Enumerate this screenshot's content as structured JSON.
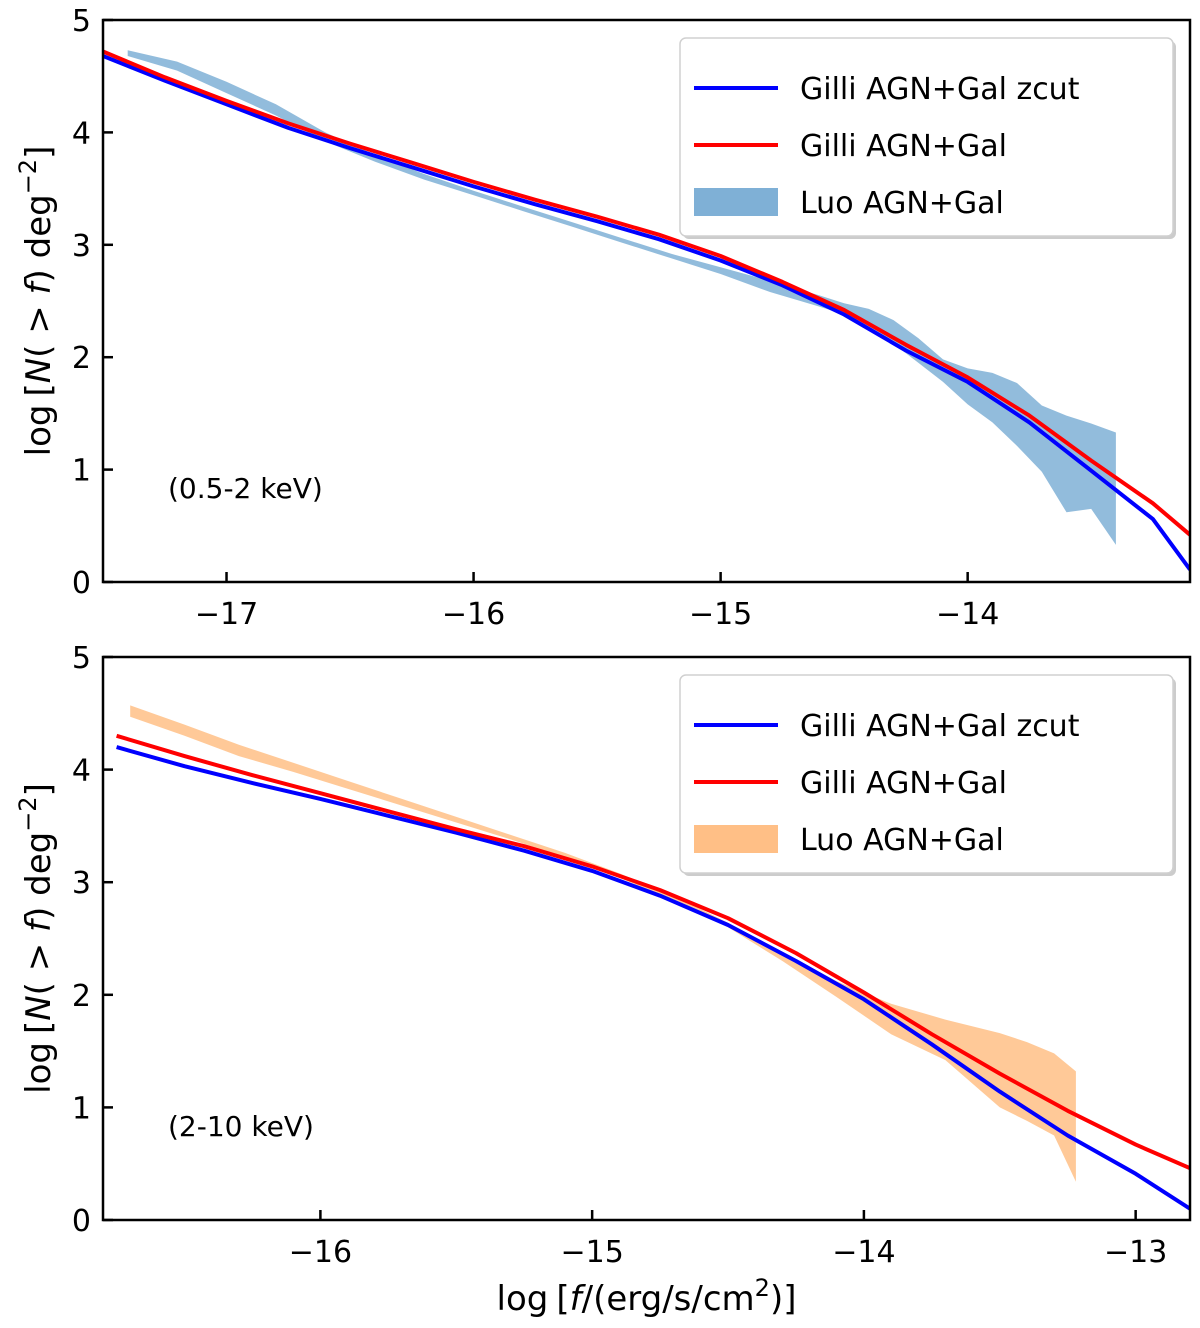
{
  "chart_data": [
    {
      "type": "line",
      "annotation": "(0.5-2 keV)",
      "xlabel": "",
      "ylabel_parts": [
        "log",
        "[",
        "N",
        "( > ",
        "f",
        ") deg",
        "−2",
        "]"
      ],
      "xlim": [
        -17.5,
        -13.1
      ],
      "ylim": [
        0,
        5
      ],
      "xticks": [
        -17,
        -16,
        -15,
        -14
      ],
      "xtick_labels": [
        "−17",
        "−16",
        "−15",
        "−14"
      ],
      "yticks": [
        0,
        1,
        2,
        3,
        4,
        5
      ],
      "ytick_labels": [
        "0",
        "1",
        "2",
        "3",
        "4",
        "5"
      ],
      "legend_position": "top-right",
      "series": [
        {
          "name": "Gilli AGN+Gal zcut",
          "kind": "line",
          "color": "#0000ff",
          "x": [
            -17.5,
            -17.25,
            -17.0,
            -16.75,
            -16.5,
            -16.25,
            -16.0,
            -15.75,
            -15.5,
            -15.25,
            -15.0,
            -14.75,
            -14.5,
            -14.25,
            -14.0,
            -13.75,
            -13.5,
            -13.25,
            -13.1
          ],
          "y": [
            4.68,
            4.46,
            4.25,
            4.04,
            3.86,
            3.69,
            3.52,
            3.36,
            3.21,
            3.05,
            2.86,
            2.64,
            2.38,
            2.06,
            1.78,
            1.42,
            0.99,
            0.56,
            0.11
          ]
        },
        {
          "name": "Gilli AGN+Gal",
          "kind": "line",
          "color": "#ff0000",
          "x": [
            -17.5,
            -17.25,
            -17.0,
            -16.75,
            -16.5,
            -16.25,
            -16.0,
            -15.75,
            -15.5,
            -15.25,
            -15.0,
            -14.75,
            -14.5,
            -14.25,
            -14.0,
            -13.75,
            -13.5,
            -13.25,
            -13.1
          ],
          "y": [
            4.72,
            4.49,
            4.28,
            4.08,
            3.9,
            3.73,
            3.56,
            3.4,
            3.25,
            3.09,
            2.9,
            2.67,
            2.42,
            2.11,
            1.82,
            1.48,
            1.08,
            0.7,
            0.42
          ]
        },
        {
          "name": "Luo AGN+Gal",
          "kind": "band",
          "color": "#7fb0d6",
          "x": [
            -17.4,
            -17.2,
            -17.0,
            -16.8,
            -16.6,
            -16.4,
            -16.2,
            -16.0,
            -15.8,
            -15.6,
            -15.4,
            -15.2,
            -15.0,
            -14.8,
            -14.6,
            -14.5,
            -14.4,
            -14.3,
            -14.2,
            -14.1,
            -14.0,
            -13.9,
            -13.8,
            -13.7,
            -13.6,
            -13.5,
            -13.4
          ],
          "y_low": [
            4.68,
            4.55,
            4.35,
            4.15,
            3.92,
            3.74,
            3.58,
            3.44,
            3.3,
            3.16,
            3.02,
            2.88,
            2.74,
            2.58,
            2.45,
            2.38,
            2.26,
            2.12,
            1.95,
            1.78,
            1.58,
            1.42,
            1.21,
            0.98,
            0.62,
            0.65,
            0.33
          ],
          "y_high": [
            4.73,
            4.63,
            4.45,
            4.25,
            4.0,
            3.8,
            3.63,
            3.48,
            3.34,
            3.2,
            3.06,
            2.92,
            2.8,
            2.68,
            2.55,
            2.48,
            2.43,
            2.33,
            2.17,
            1.98,
            1.9,
            1.86,
            1.77,
            1.57,
            1.48,
            1.41,
            1.33
          ]
        }
      ]
    },
    {
      "type": "line",
      "annotation": "(2-10 keV)",
      "xlabel_parts": [
        "log",
        "[",
        "f",
        "/(erg/s/cm",
        "2",
        ")]"
      ],
      "ylabel_parts": [
        "log",
        "[",
        "N",
        "( > ",
        "f",
        ") deg",
        "−2",
        "]"
      ],
      "xlim": [
        -16.8,
        -12.8
      ],
      "ylim": [
        0,
        5
      ],
      "xticks": [
        -16,
        -15,
        -14,
        -13
      ],
      "xtick_labels": [
        "−16",
        "−15",
        "−14",
        "−13"
      ],
      "yticks": [
        0,
        1,
        2,
        3,
        4,
        5
      ],
      "ytick_labels": [
        "0",
        "1",
        "2",
        "3",
        "4",
        "5"
      ],
      "legend_position": "top-right",
      "series": [
        {
          "name": "Gilli AGN+Gal zcut",
          "kind": "line",
          "color": "#0000ff",
          "x": [
            -16.75,
            -16.5,
            -16.25,
            -16.0,
            -15.75,
            -15.5,
            -15.25,
            -15.0,
            -14.75,
            -14.5,
            -14.25,
            -14.0,
            -13.75,
            -13.5,
            -13.25,
            -13.0,
            -12.8
          ],
          "y": [
            4.2,
            4.03,
            3.88,
            3.74,
            3.59,
            3.44,
            3.28,
            3.1,
            2.88,
            2.62,
            2.3,
            1.96,
            1.56,
            1.14,
            0.75,
            0.41,
            0.1
          ]
        },
        {
          "name": "Gilli AGN+Gal",
          "kind": "line",
          "color": "#ff0000",
          "x": [
            -16.75,
            -16.5,
            -16.25,
            -16.0,
            -15.75,
            -15.5,
            -15.25,
            -15.0,
            -14.75,
            -14.5,
            -14.25,
            -14.0,
            -13.75,
            -13.5,
            -13.25,
            -13.0,
            -12.8
          ],
          "y": [
            4.3,
            4.12,
            3.95,
            3.79,
            3.63,
            3.47,
            3.32,
            3.14,
            2.93,
            2.68,
            2.37,
            2.02,
            1.65,
            1.3,
            0.97,
            0.67,
            0.46
          ]
        },
        {
          "name": "Luo AGN+Gal",
          "kind": "band",
          "color": "#ffbf86",
          "x": [
            -16.7,
            -16.5,
            -16.3,
            -16.1,
            -15.9,
            -15.7,
            -15.5,
            -15.3,
            -15.1,
            -14.9,
            -14.7,
            -14.5,
            -14.3,
            -14.1,
            -13.9,
            -13.7,
            -13.5,
            -13.4,
            -13.3,
            -13.22
          ],
          "y_low": [
            4.47,
            4.3,
            4.12,
            3.98,
            3.83,
            3.68,
            3.53,
            3.38,
            3.22,
            3.04,
            2.84,
            2.6,
            2.3,
            1.98,
            1.65,
            1.42,
            1.0,
            0.88,
            0.75,
            0.34
          ],
          "y_high": [
            4.57,
            4.4,
            4.22,
            4.06,
            3.9,
            3.74,
            3.58,
            3.42,
            3.26,
            3.08,
            2.88,
            2.64,
            2.38,
            2.12,
            1.92,
            1.78,
            1.66,
            1.58,
            1.48,
            1.32
          ]
        }
      ]
    }
  ]
}
